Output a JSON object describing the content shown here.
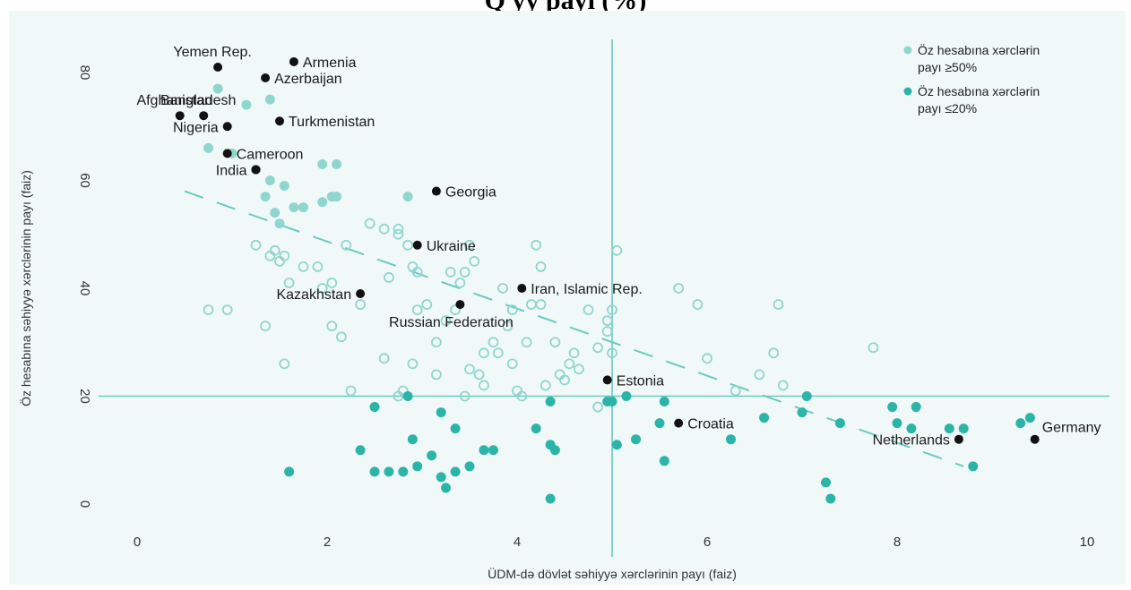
{
  "header": {
    "title": "Q                                yy                                                        payı (%)"
  },
  "colors": {
    "light": "#8fd6cf",
    "dark": "#2bb5a8",
    "labeled": "#111111",
    "ref": "#6cc9c0",
    "trend": "#6cc9c0"
  },
  "chart_data": {
    "type": "scatter",
    "xlabel": "ÜDM-də dövlət səhiyyə xərclərinin payı (faiz)",
    "ylabel": "Öz hesabına səhiyyə xərclərinin payı (faiz)",
    "xlim": [
      0,
      10
    ],
    "ylim": [
      -3,
      85
    ],
    "x_ticks": [
      "0",
      "2",
      "4",
      "6",
      "8",
      "10"
    ],
    "y_ticks": [
      "0",
      "20",
      "40",
      "60",
      "80"
    ],
    "reference_lines": {
      "x": 5,
      "y": 20
    },
    "trend_line": {
      "x": [
        0.5,
        8.7
      ],
      "y": [
        58,
        7
      ]
    },
    "legend": {
      "position": "top-right",
      "entries": [
        {
          "label_line1": "Öz hesabına xərclərin",
          "label_line2": "payı ≥50%",
          "color": "#8fd6cf"
        },
        {
          "label_line1": "Öz hesabına xərclərin",
          "label_line2": "payı ≤20%",
          "color": "#2bb5a8"
        }
      ]
    },
    "series": [
      {
        "name": "Öz hesabına xərclərin payı ≥50%",
        "style": "filled-light",
        "points": [
          [
            0.85,
            77
          ],
          [
            1.15,
            74
          ],
          [
            1.4,
            75
          ],
          [
            0.75,
            66
          ],
          [
            1.0,
            65
          ],
          [
            1.25,
            62
          ],
          [
            1.4,
            60
          ],
          [
            1.55,
            59
          ],
          [
            1.35,
            57
          ],
          [
            1.95,
            63
          ],
          [
            2.1,
            63
          ],
          [
            2.85,
            57
          ],
          [
            1.75,
            55
          ],
          [
            1.95,
            56
          ],
          [
            2.05,
            57
          ],
          [
            2.1,
            57
          ],
          [
            1.45,
            54
          ],
          [
            1.5,
            52
          ],
          [
            1.65,
            55
          ]
        ]
      },
      {
        "name": "",
        "style": "open",
        "points": [
          [
            0.75,
            36
          ],
          [
            0.95,
            36
          ],
          [
            1.25,
            48
          ],
          [
            1.4,
            46
          ],
          [
            1.45,
            47
          ],
          [
            1.55,
            46
          ],
          [
            1.5,
            45
          ],
          [
            1.6,
            41
          ],
          [
            1.75,
            44
          ],
          [
            1.9,
            44
          ],
          [
            1.35,
            33
          ],
          [
            1.55,
            26
          ],
          [
            1.95,
            40
          ],
          [
            2.05,
            41
          ],
          [
            2.2,
            48
          ],
          [
            2.05,
            33
          ],
          [
            2.15,
            31
          ],
          [
            2.25,
            21
          ],
          [
            2.35,
            37
          ],
          [
            2.45,
            52
          ],
          [
            2.6,
            51
          ],
          [
            2.65,
            42
          ],
          [
            2.75,
            51
          ],
          [
            2.75,
            50
          ],
          [
            2.85,
            48
          ],
          [
            2.9,
            44
          ],
          [
            2.95,
            43
          ],
          [
            2.6,
            27
          ],
          [
            2.75,
            20
          ],
          [
            2.8,
            21
          ],
          [
            2.9,
            26
          ],
          [
            2.95,
            36
          ],
          [
            3.05,
            37
          ],
          [
            3.15,
            30
          ],
          [
            3.15,
            24
          ],
          [
            3.25,
            34
          ],
          [
            3.35,
            36
          ],
          [
            3.4,
            41
          ],
          [
            3.45,
            43
          ],
          [
            3.5,
            48
          ],
          [
            3.55,
            45
          ],
          [
            3.3,
            43
          ],
          [
            3.45,
            20
          ],
          [
            3.5,
            25
          ],
          [
            3.6,
            24
          ],
          [
            3.65,
            28
          ],
          [
            3.65,
            22
          ],
          [
            3.75,
            30
          ],
          [
            3.8,
            28
          ],
          [
            3.85,
            40
          ],
          [
            3.9,
            33
          ],
          [
            3.95,
            36
          ],
          [
            3.95,
            26
          ],
          [
            4.0,
            21
          ],
          [
            4.05,
            20
          ],
          [
            4.1,
            30
          ],
          [
            4.15,
            37
          ],
          [
            4.2,
            48
          ],
          [
            4.25,
            44
          ],
          [
            4.25,
            37
          ],
          [
            4.3,
            22
          ],
          [
            4.4,
            30
          ],
          [
            4.45,
            24
          ],
          [
            4.5,
            23
          ],
          [
            4.55,
            26
          ],
          [
            4.6,
            28
          ],
          [
            4.65,
            25
          ],
          [
            4.75,
            36
          ],
          [
            4.85,
            29
          ],
          [
            4.95,
            32
          ],
          [
            4.95,
            34
          ],
          [
            5.0,
            36
          ],
          [
            5.0,
            28
          ],
          [
            5.05,
            47
          ],
          [
            5.7,
            40
          ],
          [
            5.9,
            37
          ],
          [
            6.0,
            27
          ],
          [
            6.3,
            21
          ],
          [
            6.55,
            24
          ],
          [
            6.7,
            28
          ],
          [
            6.75,
            37
          ],
          [
            6.8,
            22
          ],
          [
            7.75,
            29
          ],
          [
            4.85,
            18
          ]
        ]
      },
      {
        "name": "Öz hesabına xərclərin payı ≤20%",
        "style": "filled-dark",
        "points": [
          [
            1.6,
            6
          ],
          [
            2.35,
            10
          ],
          [
            2.5,
            18
          ],
          [
            2.5,
            6
          ],
          [
            2.65,
            6
          ],
          [
            2.8,
            6
          ],
          [
            2.9,
            12
          ],
          [
            2.95,
            7
          ],
          [
            2.85,
            20
          ],
          [
            3.1,
            9
          ],
          [
            3.2,
            5
          ],
          [
            3.2,
            17
          ],
          [
            3.25,
            3
          ],
          [
            3.35,
            6
          ],
          [
            3.35,
            14
          ],
          [
            3.5,
            7
          ],
          [
            3.65,
            10
          ],
          [
            3.75,
            10
          ],
          [
            4.2,
            14
          ],
          [
            4.35,
            11
          ],
          [
            4.35,
            19
          ],
          [
            4.4,
            10
          ],
          [
            4.35,
            1
          ],
          [
            4.95,
            19
          ],
          [
            5.0,
            19
          ],
          [
            5.05,
            11
          ],
          [
            5.15,
            20
          ],
          [
            5.25,
            12
          ],
          [
            5.5,
            15
          ],
          [
            5.55,
            19
          ],
          [
            5.55,
            8
          ],
          [
            6.25,
            12
          ],
          [
            6.6,
            16
          ],
          [
            7.0,
            17
          ],
          [
            7.05,
            20
          ],
          [
            7.25,
            4
          ],
          [
            7.3,
            1
          ],
          [
            7.4,
            15
          ],
          [
            7.95,
            18
          ],
          [
            8.0,
            15
          ],
          [
            8.15,
            14
          ],
          [
            8.2,
            18
          ],
          [
            8.55,
            14
          ],
          [
            8.7,
            14
          ],
          [
            8.8,
            7
          ],
          [
            9.3,
            15
          ],
          [
            9.4,
            16
          ]
        ]
      },
      {
        "name": "",
        "style": "labeled",
        "points": []
      }
    ],
    "labeled_points": [
      {
        "label": "Yemen Rep.",
        "x": 0.85,
        "y": 81,
        "anchor": "above"
      },
      {
        "label": "Armenia",
        "x": 1.65,
        "y": 82,
        "anchor": "right"
      },
      {
        "label": "Afghanistan",
        "x": 0.45,
        "y": 72,
        "anchor": "above"
      },
      {
        "label": "Azerbaijan",
        "x": 1.35,
        "y": 79,
        "anchor": "right"
      },
      {
        "label": "Bangladesh",
        "x": 0.7,
        "y": 72,
        "anchor": "above"
      },
      {
        "label": "Nigeria",
        "x": 0.95,
        "y": 70,
        "anchor": "left"
      },
      {
        "label": "Turkmenistan",
        "x": 1.5,
        "y": 71,
        "anchor": "right"
      },
      {
        "label": "Cameroon",
        "x": 0.95,
        "y": 65,
        "anchor": "right"
      },
      {
        "label": "India",
        "x": 1.25,
        "y": 62,
        "anchor": "left"
      },
      {
        "label": "Georgia",
        "x": 3.15,
        "y": 58,
        "anchor": "right"
      },
      {
        "label": "Ukraine",
        "x": 2.95,
        "y": 48,
        "anchor": "right"
      },
      {
        "label": "Kazakhstan",
        "x": 2.35,
        "y": 39,
        "anchor": "left"
      },
      {
        "label": "Iran, Islamic Rep.",
        "x": 4.05,
        "y": 40,
        "anchor": "right"
      },
      {
        "label": "Russian Federation",
        "x": 3.4,
        "y": 37,
        "anchor": "below"
      },
      {
        "label": "Estonia",
        "x": 4.95,
        "y": 23,
        "anchor": "right"
      },
      {
        "label": "Croatia",
        "x": 5.7,
        "y": 15,
        "anchor": "right"
      },
      {
        "label": "Netherlands",
        "x": 8.65,
        "y": 12,
        "anchor": "left"
      },
      {
        "label": "Germany",
        "x": 9.45,
        "y": 12,
        "anchor": "above-right"
      }
    ]
  }
}
